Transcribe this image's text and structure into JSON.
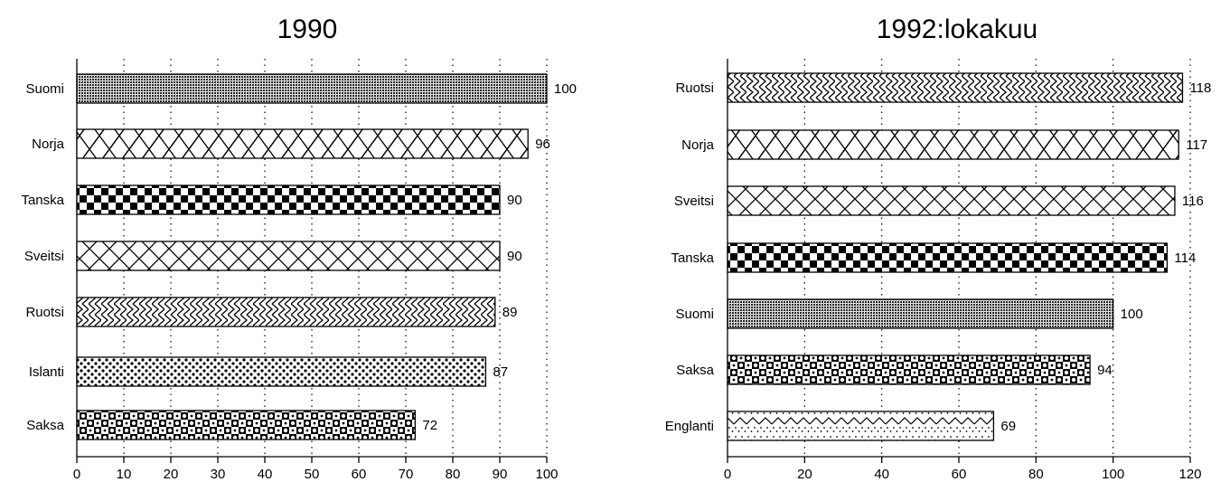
{
  "chart_data": [
    {
      "type": "bar",
      "orientation": "horizontal",
      "title": "1990",
      "xlabel": "",
      "ylabel": "",
      "categories": [
        "Suomi",
        "Norja",
        "Tanska",
        "Sveitsi",
        "Ruotsi",
        "Islanti",
        "Saksa"
      ],
      "values": [
        100,
        96,
        90,
        90,
        89,
        87,
        72
      ],
      "data_labels": [
        "100",
        "96",
        "90",
        "90",
        "89",
        "87",
        "72"
      ],
      "patterns": [
        "dense-dots",
        "chevron-diagonal",
        "checker",
        "crosshatch",
        "chevron-horizontal",
        "polka-dots",
        "checker-dots"
      ],
      "xlim": [
        0,
        100
      ],
      "xticks": [
        0,
        10,
        20,
        30,
        40,
        50,
        60,
        70,
        80,
        90,
        100
      ],
      "xtick_labels": [
        "0",
        "10",
        "20",
        "30",
        "40",
        "50",
        "60",
        "70",
        "80",
        "90",
        "100"
      ],
      "grid": "vertical-dotted",
      "legend": "none"
    },
    {
      "type": "bar",
      "orientation": "horizontal",
      "title": "1992:lokakuu",
      "xlabel": "",
      "ylabel": "",
      "categories": [
        "Ruotsi",
        "Norja",
        "Sveitsi",
        "Tanska",
        "Suomi",
        "Saksa",
        "Englanti"
      ],
      "values": [
        118,
        117,
        116,
        114,
        100,
        94,
        69
      ],
      "data_labels": [
        "118",
        "117",
        "116",
        "114",
        "100",
        "94",
        "69"
      ],
      "patterns": [
        "chevron-horizontal",
        "chevron-diagonal",
        "crosshatch",
        "checker",
        "dense-dots",
        "checker-dots",
        "zigzag-dots"
      ],
      "xlim": [
        0,
        120
      ],
      "xticks": [
        0,
        20,
        40,
        60,
        80,
        100,
        120
      ],
      "xtick_labels": [
        "0",
        "20",
        "40",
        "60",
        "80",
        "100",
        "120"
      ],
      "grid": "vertical-dotted",
      "legend": "none"
    }
  ]
}
